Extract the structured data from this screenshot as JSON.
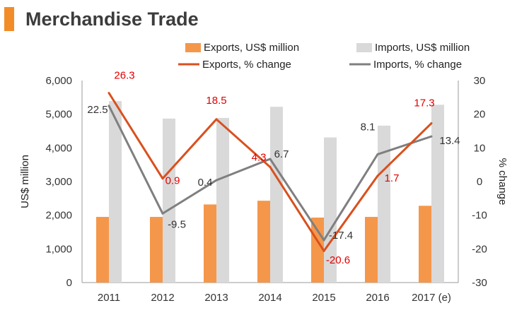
{
  "title": "Merchandise Trade",
  "colors": {
    "accent": "#f28c28",
    "exports_bar": "#f5974a",
    "imports_bar": "#d9d9d9",
    "exports_line": "#d9501e",
    "imports_line": "#7f7f7f",
    "label_red": "#e00000",
    "label_dark": "#333333"
  },
  "chart_data": {
    "type": "bar",
    "title": "Merchandise Trade",
    "categories": [
      "2011",
      "2012",
      "2013",
      "2014",
      "2015",
      "2016",
      "2017 (e)"
    ],
    "ylabel": "US$ million",
    "y2label": "% change",
    "ylim": [
      0,
      6000
    ],
    "y2lim": [
      -30,
      30
    ],
    "yticks": [
      "0",
      "1,000",
      "2,000",
      "3,000",
      "4,000",
      "5,000",
      "6,000"
    ],
    "y2ticks": [
      "-30",
      "-20",
      "-10",
      "0",
      "10",
      "20",
      "30"
    ],
    "legend_position": "top",
    "grid": false,
    "series": [
      {
        "name": "Exports, US$ million",
        "kind": "bar",
        "axis": "left",
        "values": [
          1950,
          1950,
          2320,
          2430,
          1930,
          1950,
          2280
        ]
      },
      {
        "name": "Imports, US$ million",
        "kind": "bar",
        "axis": "left",
        "values": [
          5390,
          4870,
          4890,
          5220,
          4310,
          4660,
          5280
        ]
      },
      {
        "name": "Exports, % change",
        "kind": "line",
        "axis": "right",
        "values": [
          26.3,
          0.9,
          18.5,
          4.3,
          -20.6,
          1.7,
          17.3
        ],
        "labels": [
          "26.3",
          "0.9",
          "18.5",
          "4.3",
          "-20.6",
          "1.7",
          "17.3"
        ]
      },
      {
        "name": "Imports, % change",
        "kind": "line",
        "axis": "right",
        "values": [
          22.5,
          -9.5,
          0.4,
          6.7,
          -17.4,
          8.1,
          13.4
        ],
        "labels": [
          "22.5",
          "-9.5",
          "0.4",
          "6.7",
          "-17.4",
          "8.1",
          "13.4"
        ]
      }
    ]
  }
}
